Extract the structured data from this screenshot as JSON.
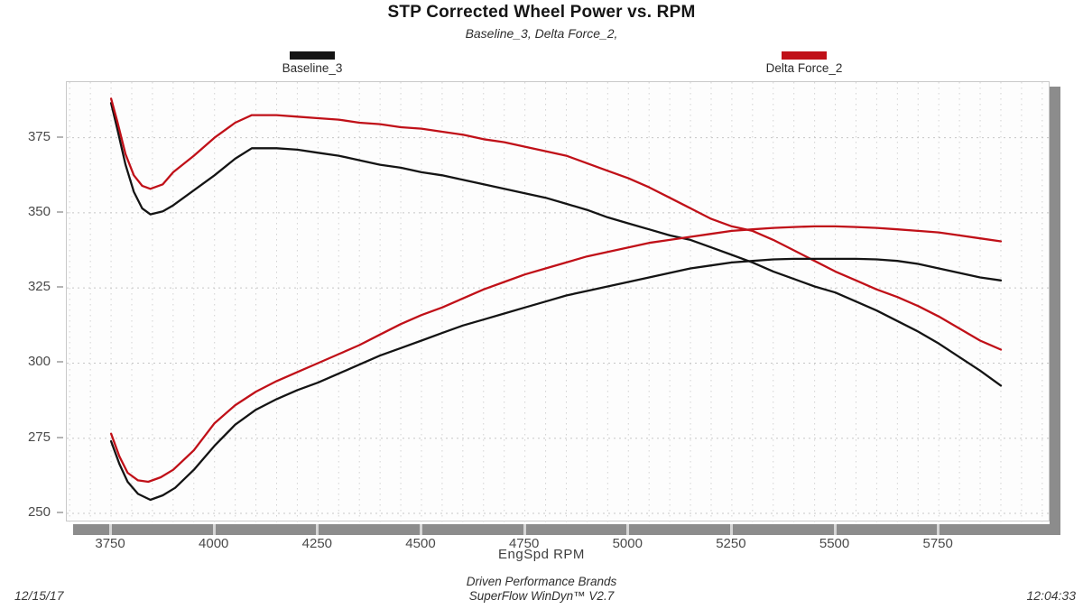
{
  "header": {
    "title": "STP Corrected Wheel Power vs. RPM",
    "subtitle": "Baseline_3, Delta Force_2,"
  },
  "legend": [
    {
      "label": "Baseline_3",
      "color": "#141414"
    },
    {
      "label": "Delta Force_2",
      "color": "#c01018"
    }
  ],
  "axis": {
    "x_title": "EngSpd  RPM"
  },
  "footer": {
    "brand": "Driven Performance Brands",
    "software": "SuperFlow WinDyn™ V2.7",
    "date": "12/15/17",
    "time": "12:04:33"
  },
  "colors": {
    "baseline": "#141414",
    "delta": "#c01018",
    "grid": "#d2d2d2",
    "axis_band": "#8c8c8c"
  },
  "chart_data": {
    "type": "line",
    "title": "STP Corrected Wheel Power vs. RPM",
    "subtitle": "Baseline_3, Delta Force_2,",
    "xlabel": "EngSpd  RPM",
    "ylabel": "",
    "xlim": [
      3643,
      6020
    ],
    "ylim": [
      247,
      393.5
    ],
    "x_ticks": [
      3750,
      4000,
      4250,
      4500,
      4750,
      5000,
      5250,
      5500,
      5750
    ],
    "y_ticks": [
      250,
      275,
      300,
      325,
      350,
      375
    ],
    "grid": "dotted",
    "grid_minor_x_step_rpm": 50,
    "legend_position": "top",
    "series": [
      {
        "name": "Baseline_3",
        "trace": "upper-curve",
        "color": "#141414",
        "points": [
          [
            3750,
            386.5
          ],
          [
            3765,
            378
          ],
          [
            3785,
            366
          ],
          [
            3805,
            357
          ],
          [
            3825,
            351.5
          ],
          [
            3845,
            349.5
          ],
          [
            3875,
            350.5
          ],
          [
            3900,
            352.5
          ],
          [
            3950,
            357.5
          ],
          [
            4000,
            362.5
          ],
          [
            4050,
            368
          ],
          [
            4090,
            371.5
          ],
          [
            4150,
            371.5
          ],
          [
            4200,
            371
          ],
          [
            4250,
            370
          ],
          [
            4300,
            369
          ],
          [
            4350,
            367.5
          ],
          [
            4400,
            366
          ],
          [
            4450,
            365
          ],
          [
            4500,
            363.5
          ],
          [
            4550,
            362.5
          ],
          [
            4600,
            361
          ],
          [
            4650,
            359.5
          ],
          [
            4700,
            358
          ],
          [
            4750,
            356.5
          ],
          [
            4800,
            355
          ],
          [
            4850,
            353
          ],
          [
            4900,
            351
          ],
          [
            4950,
            348.5
          ],
          [
            5000,
            346.5
          ],
          [
            5050,
            344.5
          ],
          [
            5100,
            342.5
          ],
          [
            5150,
            341
          ],
          [
            5200,
            338.5
          ],
          [
            5250,
            336
          ],
          [
            5300,
            333.5
          ],
          [
            5350,
            330.5
          ],
          [
            5400,
            328
          ],
          [
            5450,
            325.5
          ],
          [
            5500,
            323.5
          ],
          [
            5550,
            320.5
          ],
          [
            5600,
            317.5
          ],
          [
            5650,
            314
          ],
          [
            5700,
            310.5
          ],
          [
            5750,
            306.5
          ],
          [
            5800,
            302
          ],
          [
            5850,
            297.5
          ],
          [
            5900,
            292.5
          ]
        ]
      },
      {
        "name": "Delta Force_2",
        "trace": "upper-curve",
        "color": "#c01018",
        "points": [
          [
            3750,
            388
          ],
          [
            3765,
            380.5
          ],
          [
            3785,
            369.5
          ],
          [
            3805,
            362.5
          ],
          [
            3825,
            359
          ],
          [
            3845,
            358
          ],
          [
            3875,
            359.5
          ],
          [
            3900,
            363.5
          ],
          [
            3950,
            369
          ],
          [
            4000,
            375
          ],
          [
            4050,
            380
          ],
          [
            4090,
            382.5
          ],
          [
            4150,
            382.5
          ],
          [
            4200,
            382
          ],
          [
            4250,
            381.5
          ],
          [
            4300,
            381
          ],
          [
            4350,
            380
          ],
          [
            4400,
            379.5
          ],
          [
            4450,
            378.5
          ],
          [
            4500,
            378
          ],
          [
            4550,
            377
          ],
          [
            4600,
            376
          ],
          [
            4650,
            374.5
          ],
          [
            4700,
            373.5
          ],
          [
            4750,
            372
          ],
          [
            4800,
            370.5
          ],
          [
            4850,
            369
          ],
          [
            4900,
            366.5
          ],
          [
            4950,
            364
          ],
          [
            5000,
            361.5
          ],
          [
            5050,
            358.5
          ],
          [
            5100,
            355
          ],
          [
            5150,
            351.5
          ],
          [
            5200,
            348
          ],
          [
            5250,
            345.5
          ],
          [
            5300,
            344
          ],
          [
            5350,
            341
          ],
          [
            5400,
            337.5
          ],
          [
            5450,
            334
          ],
          [
            5500,
            330.5
          ],
          [
            5550,
            327.5
          ],
          [
            5600,
            324.5
          ],
          [
            5650,
            322
          ],
          [
            5700,
            319
          ],
          [
            5750,
            315.5
          ],
          [
            5800,
            311.5
          ],
          [
            5850,
            307.5
          ],
          [
            5900,
            304.5
          ]
        ]
      },
      {
        "name": "Baseline_3",
        "trace": "lower-curve",
        "color": "#141414",
        "points": [
          [
            3750,
            274
          ],
          [
            3770,
            266.5
          ],
          [
            3790,
            260.5
          ],
          [
            3815,
            256.5
          ],
          [
            3845,
            254.5
          ],
          [
            3875,
            256
          ],
          [
            3905,
            258.5
          ],
          [
            3950,
            264.5
          ],
          [
            4000,
            272.5
          ],
          [
            4050,
            279.5
          ],
          [
            4100,
            284.5
          ],
          [
            4150,
            288
          ],
          [
            4200,
            291
          ],
          [
            4250,
            293.5
          ],
          [
            4300,
            296.5
          ],
          [
            4350,
            299.5
          ],
          [
            4400,
            302.5
          ],
          [
            4450,
            305
          ],
          [
            4500,
            307.5
          ],
          [
            4550,
            310
          ],
          [
            4600,
            312.5
          ],
          [
            4650,
            314.5
          ],
          [
            4700,
            316.5
          ],
          [
            4750,
            318.5
          ],
          [
            4800,
            320.5
          ],
          [
            4850,
            322.5
          ],
          [
            4900,
            324
          ],
          [
            4950,
            325.5
          ],
          [
            5000,
            327
          ],
          [
            5050,
            328.5
          ],
          [
            5100,
            330
          ],
          [
            5150,
            331.5
          ],
          [
            5200,
            332.5
          ],
          [
            5250,
            333.5
          ],
          [
            5300,
            334
          ],
          [
            5350,
            334.5
          ],
          [
            5400,
            334.7
          ],
          [
            5450,
            334.7
          ],
          [
            5500,
            334.7
          ],
          [
            5550,
            334.7
          ],
          [
            5600,
            334.5
          ],
          [
            5650,
            334
          ],
          [
            5700,
            333
          ],
          [
            5750,
            331.5
          ],
          [
            5800,
            330
          ],
          [
            5850,
            328.5
          ],
          [
            5900,
            327.5
          ]
        ]
      },
      {
        "name": "Delta Force_2",
        "trace": "lower-curve",
        "color": "#c01018",
        "points": [
          [
            3750,
            276.5
          ],
          [
            3770,
            269
          ],
          [
            3790,
            263.5
          ],
          [
            3815,
            261
          ],
          [
            3840,
            260.5
          ],
          [
            3870,
            262
          ],
          [
            3900,
            264.5
          ],
          [
            3950,
            271
          ],
          [
            4000,
            280
          ],
          [
            4050,
            286
          ],
          [
            4100,
            290.5
          ],
          [
            4150,
            294
          ],
          [
            4200,
            297
          ],
          [
            4250,
            300
          ],
          [
            4300,
            303
          ],
          [
            4350,
            306
          ],
          [
            4400,
            309.5
          ],
          [
            4450,
            313
          ],
          [
            4500,
            316
          ],
          [
            4550,
            318.5
          ],
          [
            4600,
            321.5
          ],
          [
            4650,
            324.5
          ],
          [
            4700,
            327
          ],
          [
            4750,
            329.5
          ],
          [
            4800,
            331.5
          ],
          [
            4850,
            333.5
          ],
          [
            4900,
            335.5
          ],
          [
            4950,
            337
          ],
          [
            5000,
            338.5
          ],
          [
            5050,
            340
          ],
          [
            5100,
            341
          ],
          [
            5150,
            342
          ],
          [
            5200,
            343
          ],
          [
            5250,
            344
          ],
          [
            5300,
            344.5
          ],
          [
            5350,
            345
          ],
          [
            5400,
            345.3
          ],
          [
            5450,
            345.5
          ],
          [
            5500,
            345.5
          ],
          [
            5550,
            345.3
          ],
          [
            5600,
            345
          ],
          [
            5650,
            344.5
          ],
          [
            5700,
            344
          ],
          [
            5750,
            343.5
          ],
          [
            5800,
            342.5
          ],
          [
            5850,
            341.5
          ],
          [
            5900,
            340.5
          ]
        ]
      }
    ]
  }
}
